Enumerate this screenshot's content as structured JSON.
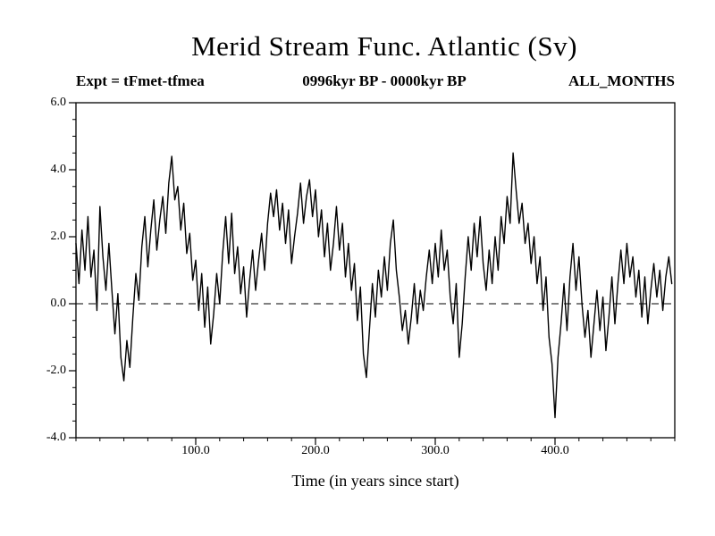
{
  "title": "Merid Stream Func. Atlantic (Sv)",
  "header": {
    "left": "Expt = tFmet-tfmea",
    "center": "0996kyr BP - 0000kyr BP",
    "right": "ALL_MONTHS"
  },
  "xlabel": "Time (in years since start)",
  "chart_data": {
    "type": "line",
    "title": "Merid Stream Func. Atlantic (Sv)",
    "subtitle_left": "Expt = tFmet-tfmea",
    "subtitle_center": "0996kyr BP - 0000kyr BP",
    "subtitle_right": "ALL_MONTHS",
    "xlabel": "Time (in years since start)",
    "ylabel": "",
    "xlim": [
      0,
      500
    ],
    "ylim": [
      -4.0,
      6.0
    ],
    "xticks": [
      100,
      200,
      300,
      400
    ],
    "xtick_labels": [
      "100.0",
      "200.0",
      "300.0",
      "400.0"
    ],
    "yticks": [
      -4.0,
      -2.0,
      0.0,
      2.0,
      4.0,
      6.0
    ],
    "ytick_labels": [
      "-4.0",
      "-2.0",
      "0.0",
      "2.0",
      "4.0",
      "6.0"
    ],
    "x_minor_step": 20,
    "y_minor_step": 0.5,
    "zero_line": true,
    "grid": false,
    "legend": null,
    "line_color": "#000000",
    "x_start": 0,
    "x_step": 2.5,
    "y": [
      1.8,
      0.6,
      2.2,
      1.0,
      2.6,
      0.8,
      1.6,
      -0.2,
      2.9,
      1.4,
      0.4,
      1.8,
      0.4,
      -0.9,
      0.3,
      -1.6,
      -2.3,
      -1.1,
      -1.9,
      -0.4,
      0.9,
      0.1,
      1.7,
      2.6,
      1.1,
      2.2,
      3.1,
      1.6,
      2.5,
      3.2,
      2.1,
      3.6,
      4.4,
      3.1,
      3.5,
      2.2,
      3.0,
      1.5,
      2.1,
      0.7,
      1.3,
      -0.2,
      0.9,
      -0.7,
      0.5,
      -1.2,
      -0.3,
      0.9,
      0.0,
      1.5,
      2.6,
      1.2,
      2.7,
      0.9,
      1.7,
      0.3,
      1.1,
      -0.4,
      0.7,
      1.6,
      0.4,
      1.3,
      2.1,
      1.0,
      2.4,
      3.3,
      2.6,
      3.4,
      2.2,
      3.0,
      1.8,
      2.8,
      1.2,
      2.0,
      2.7,
      3.6,
      2.4,
      3.2,
      3.7,
      2.6,
      3.4,
      2.0,
      2.8,
      1.4,
      2.4,
      1.0,
      1.8,
      2.9,
      1.6,
      2.4,
      0.8,
      1.8,
      0.4,
      1.2,
      -0.5,
      0.5,
      -1.5,
      -2.2,
      -0.8,
      0.6,
      -0.4,
      1.0,
      0.2,
      1.4,
      0.4,
      1.8,
      2.5,
      1.0,
      0.2,
      -0.8,
      -0.2,
      -1.2,
      -0.4,
      0.6,
      -0.6,
      0.4,
      -0.2,
      0.8,
      1.6,
      0.6,
      1.8,
      0.8,
      2.2,
      1.0,
      1.6,
      0.2,
      -0.6,
      0.6,
      -1.6,
      -0.6,
      0.8,
      2.0,
      1.0,
      2.4,
      1.4,
      2.6,
      1.2,
      0.4,
      1.6,
      0.6,
      2.0,
      1.0,
      2.6,
      1.8,
      3.2,
      2.4,
      4.5,
      3.4,
      2.4,
      3.0,
      1.8,
      2.4,
      1.2,
      2.0,
      0.6,
      1.4,
      -0.2,
      0.8,
      -1.0,
      -1.8,
      -3.4,
      -1.6,
      -0.6,
      0.6,
      -0.8,
      0.8,
      1.8,
      0.4,
      1.4,
      0.0,
      -1.0,
      -0.2,
      -1.6,
      -0.6,
      0.4,
      -0.8,
      0.2,
      -1.4,
      -0.4,
      0.8,
      -0.6,
      0.6,
      1.6,
      0.6,
      1.8,
      0.8,
      1.4,
      0.2,
      1.0,
      -0.4,
      0.8,
      -0.6,
      0.4,
      1.2,
      0.2,
      1.0,
      -0.2,
      0.8,
      1.4,
      0.6
    ]
  }
}
